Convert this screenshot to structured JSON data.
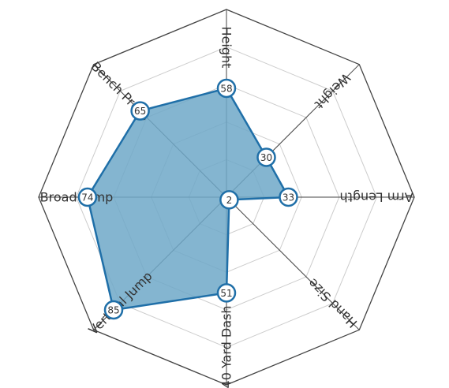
{
  "chart_data": {
    "type": "radar",
    "axes": [
      "Height",
      "Weight",
      "Arm Length",
      "Hand Size",
      "40 Yard Dash",
      "Vertical Jump",
      "Broad Jump",
      "Bench Press"
    ],
    "values": [
      58,
      30,
      33,
      2,
      51,
      85,
      74,
      65
    ],
    "range": [
      0,
      100
    ],
    "rings": 5,
    "grid": true,
    "legend": "none",
    "colors": {
      "fill": "#6fa8c8",
      "stroke": "#1f6fa8",
      "frame": "#444444",
      "grid": "#cccccc",
      "spoke": "#444444"
    }
  }
}
